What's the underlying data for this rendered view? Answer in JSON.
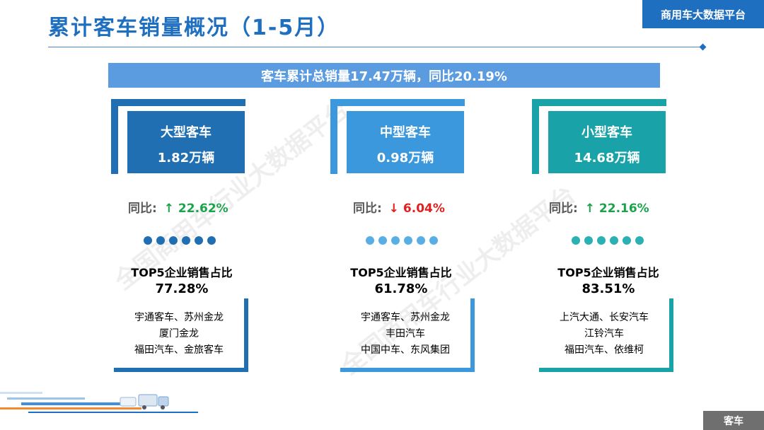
{
  "header": {
    "title": "累计客车销量概况（1-5月）",
    "platform": "商用车大数据平台"
  },
  "summary": {
    "text": "客车累计总销量17.47万辆，同比20.19%"
  },
  "watermark": "全国商用车行业大数据平台",
  "yoy_label": "同比:",
  "top5_label": "TOP5企业销售占比",
  "segments": [
    {
      "name": "大型客车",
      "volume": "1.82万辆",
      "yoy_direction": "up",
      "yoy_arrow": "↑",
      "yoy_value": "22.62%",
      "top5_share": "77.28%",
      "companies": [
        "宇通客车、苏州金龙",
        "厦门金龙",
        "福田汽车、金旅客车"
      ],
      "color": "#1f6fb2"
    },
    {
      "name": "中型客车",
      "volume": "0.98万辆",
      "yoy_direction": "down",
      "yoy_arrow": "↓",
      "yoy_value": "6.04%",
      "top5_share": "61.78%",
      "companies": [
        "宇通客车、苏州金龙",
        "丰田汽车",
        "中国中车、东风集团"
      ],
      "color": "#3c98dc"
    },
    {
      "name": "小型客车",
      "volume": "14.68万辆",
      "yoy_direction": "up",
      "yoy_arrow": "↑",
      "yoy_value": "22.16%",
      "top5_share": "83.51%",
      "companies": [
        "上汽大通、长安汽车",
        "江铃汽车",
        "福田汽车、依维柯"
      ],
      "color": "#19a3a8"
    }
  ],
  "colors": {
    "up": "#1aa34a",
    "down": "#e02020",
    "accent": "#1f6fc0"
  },
  "footer": {
    "tag": "客车"
  }
}
